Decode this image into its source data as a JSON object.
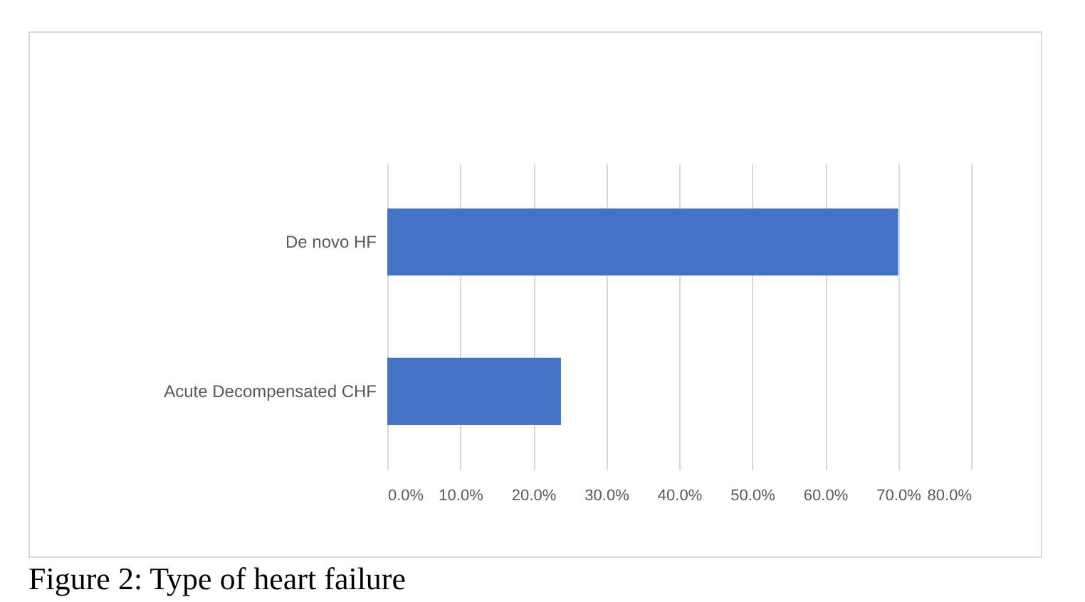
{
  "chart_data": {
    "type": "bar",
    "orientation": "horizontal",
    "categories": [
      "De novo HF",
      "Acute Decompensated CHF"
    ],
    "values": [
      70.0,
      23.8
    ],
    "color": "#4472c4",
    "xlim": [
      0,
      80
    ],
    "xticks": [
      {
        "value": 0,
        "label": "0.0%"
      },
      {
        "value": 10,
        "label": "10.0%"
      },
      {
        "value": 20,
        "label": "20.0%"
      },
      {
        "value": 30,
        "label": "30.0%"
      },
      {
        "value": 40,
        "label": "40.0%"
      },
      {
        "value": 50,
        "label": "50.0%"
      },
      {
        "value": 60,
        "label": "60.0%"
      },
      {
        "value": 70,
        "label": "70.0%"
      },
      {
        "value": 80,
        "label": "80.0%"
      }
    ],
    "grid": "x",
    "annotations": [
      "Figure 2: Type of heart failure"
    ]
  }
}
